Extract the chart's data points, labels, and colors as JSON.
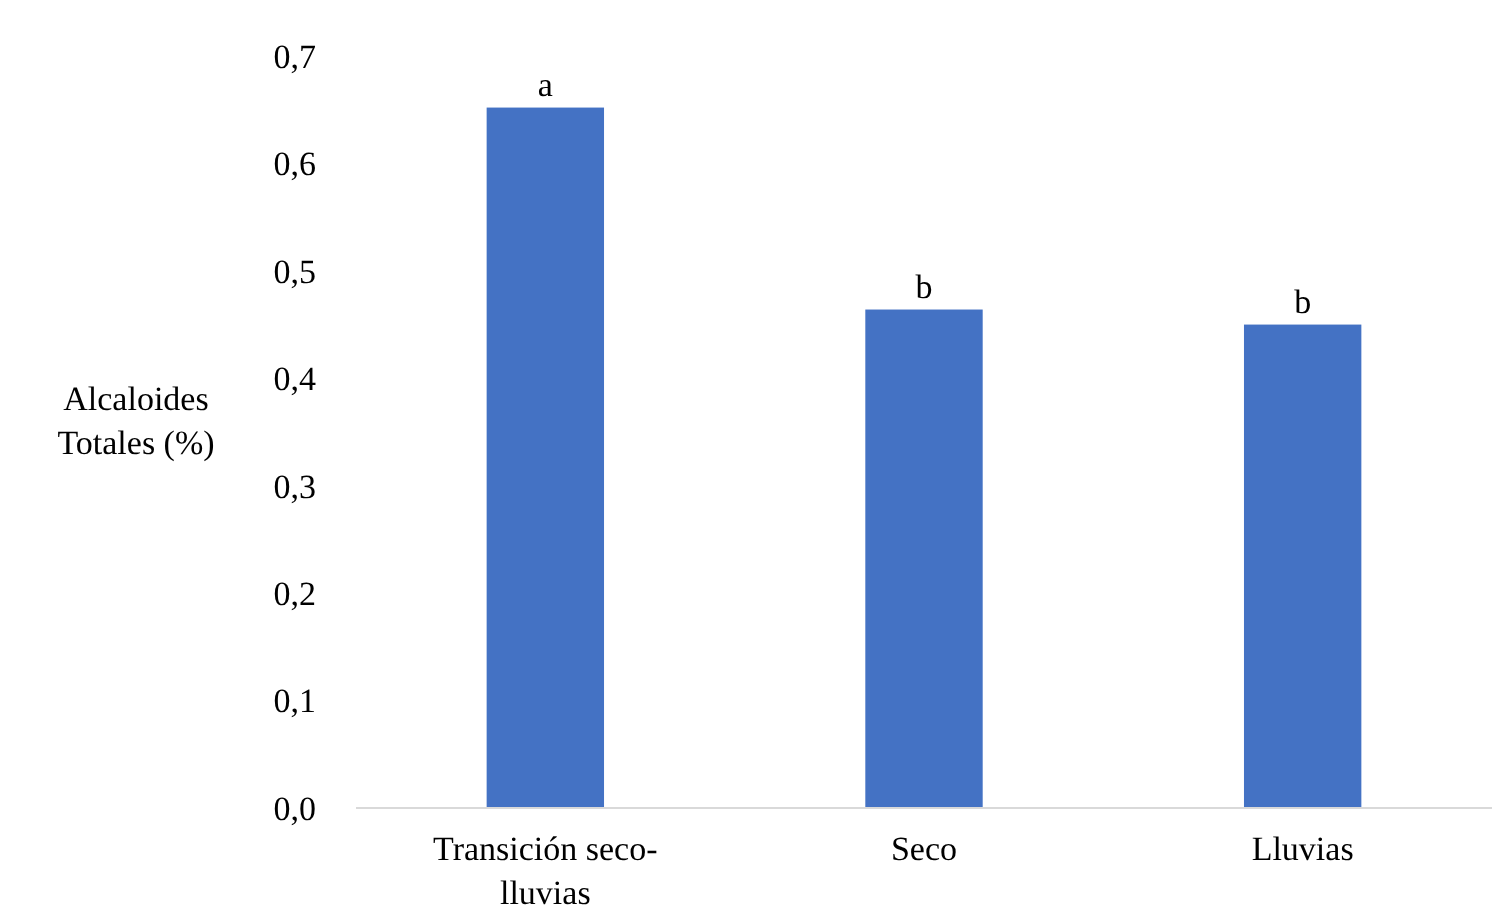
{
  "chart_data": {
    "type": "bar",
    "ylabel": "Alcaloides Totales (%)",
    "categories": [
      "Transición seco-lluvias",
      "Seco",
      "Lluvias"
    ],
    "values": [
      0.652,
      0.464,
      0.45
    ],
    "color": "#4472c4",
    "ylim": [
      0,
      0.7
    ],
    "yticks": [
      {
        "value": 0,
        "label": "0,0"
      },
      {
        "value": 0.1,
        "label": "0,1"
      },
      {
        "value": 0.2,
        "label": "0,2"
      },
      {
        "value": 0.3,
        "label": "0,3"
      },
      {
        "value": 0.4,
        "label": "0,4"
      },
      {
        "value": 0.5,
        "label": "0,5"
      },
      {
        "value": 0.6,
        "label": "0,6"
      },
      {
        "value": 0.7,
        "label": "0,7"
      }
    ],
    "annotations": [
      {
        "text": "a",
        "x": "Transición seco-lluvias",
        "y": 0.652
      },
      {
        "text": "b",
        "x": "Seco",
        "y": 0.464
      },
      {
        "text": "b",
        "x": "Lluvias",
        "y": 0.45
      }
    ]
  }
}
